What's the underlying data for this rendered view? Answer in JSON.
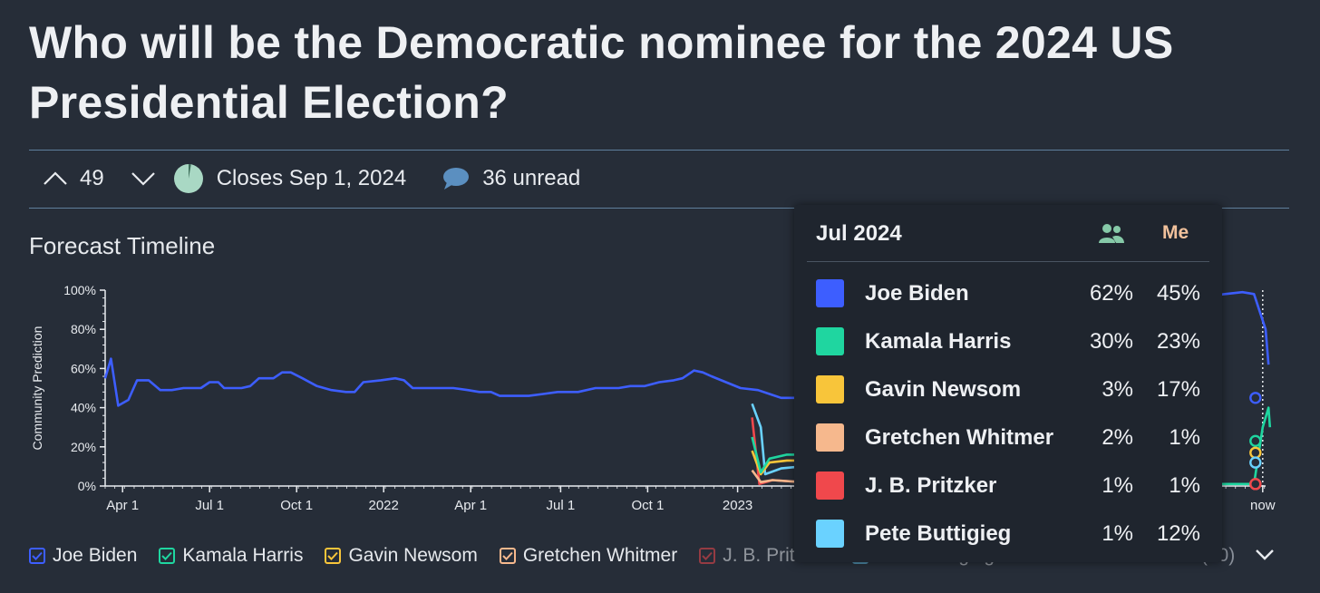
{
  "title": "Who will be the Democratic nominee for the 2024 US Presidential Election?",
  "meta": {
    "votes": "49",
    "closes": "Closes Sep 1, 2024",
    "unread": "36 unread"
  },
  "section_title": "Forecast Timeline",
  "legend_items": [
    {
      "label": "Joe Biden",
      "color": "#3d5eff"
    },
    {
      "label": "Kamala Harris",
      "color": "#1fd6a0"
    },
    {
      "label": "Gavin Newsom",
      "color": "#f8c53a"
    },
    {
      "label": "Gretchen Whitmer",
      "color": "#f6b88d"
    },
    {
      "label": "J. B. Pritzker",
      "color": "#f0484c"
    },
    {
      "label": "Pete Buttigieg",
      "color": "#6ad2ff"
    }
  ],
  "legend_others": "Others (10)",
  "tooltip": {
    "month": "Jul 2024",
    "me_label": "Me",
    "rows": [
      {
        "name": "Joe Biden",
        "community": "62%",
        "me": "45%",
        "color": "#3d5eff"
      },
      {
        "name": "Kamala Harris",
        "community": "30%",
        "me": "23%",
        "color": "#1fd6a0"
      },
      {
        "name": "Gavin Newsom",
        "community": "3%",
        "me": "17%",
        "color": "#f8c53a"
      },
      {
        "name": "Gretchen Whitmer",
        "community": "2%",
        "me": "1%",
        "color": "#f6b88d"
      },
      {
        "name": "J. B. Pritzker",
        "community": "1%",
        "me": "1%",
        "color": "#f0484c"
      },
      {
        "name": "Pete Buttigieg",
        "community": "1%",
        "me": "12%",
        "color": "#6ad2ff"
      }
    ]
  },
  "chart_data": {
    "type": "line",
    "ylabel": "Community Prediction",
    "yticks": [
      "0%",
      "20%",
      "40%",
      "60%",
      "80%",
      "100%"
    ],
    "ylim": [
      0,
      100
    ],
    "xticks": [
      "Apr 1",
      "Jul 1",
      "Oct 1",
      "2022",
      "Apr 1",
      "Jul 1",
      "Oct 1",
      "2023",
      "now"
    ],
    "x_range_months": [
      0,
      40
    ],
    "series": [
      {
        "name": "Joe Biden",
        "color": "#3d5eff",
        "points": [
          [
            0,
            55
          ],
          [
            0.2,
            65
          ],
          [
            0.45,
            41
          ],
          [
            0.8,
            44
          ],
          [
            1.1,
            54
          ],
          [
            1.5,
            54
          ],
          [
            1.9,
            49
          ],
          [
            2.3,
            49
          ],
          [
            2.7,
            50
          ],
          [
            3.3,
            50
          ],
          [
            3.6,
            53
          ],
          [
            3.9,
            53
          ],
          [
            4.1,
            50
          ],
          [
            4.7,
            50
          ],
          [
            5.0,
            51
          ],
          [
            5.3,
            55
          ],
          [
            5.8,
            55
          ],
          [
            6.1,
            58
          ],
          [
            6.4,
            58
          ],
          [
            6.8,
            55
          ],
          [
            7.3,
            51
          ],
          [
            7.8,
            49
          ],
          [
            8.3,
            48
          ],
          [
            8.6,
            48
          ],
          [
            8.9,
            53
          ],
          [
            9.5,
            54
          ],
          [
            10.0,
            55
          ],
          [
            10.3,
            54
          ],
          [
            10.6,
            50
          ],
          [
            11.5,
            50
          ],
          [
            12.0,
            50
          ],
          [
            12.5,
            49
          ],
          [
            12.9,
            48
          ],
          [
            13.3,
            48
          ],
          [
            13.6,
            46
          ],
          [
            14.2,
            46
          ],
          [
            14.6,
            46
          ],
          [
            15.1,
            47
          ],
          [
            15.6,
            48
          ],
          [
            16.3,
            48
          ],
          [
            16.9,
            50
          ],
          [
            17.7,
            50
          ],
          [
            18.1,
            51
          ],
          [
            18.6,
            51
          ],
          [
            19.1,
            53
          ],
          [
            19.6,
            54
          ],
          [
            19.9,
            55
          ],
          [
            20.3,
            59
          ],
          [
            20.6,
            58
          ],
          [
            20.9,
            56
          ],
          [
            21.4,
            53
          ],
          [
            21.9,
            50
          ],
          [
            22.5,
            49
          ],
          [
            22.9,
            47
          ],
          [
            23.3,
            45
          ],
          [
            24.0,
            45
          ],
          [
            24.5,
            47
          ],
          [
            25.1,
            47
          ],
          [
            25.6,
            49
          ],
          [
            26.2,
            54
          ],
          [
            26.7,
            54
          ],
          [
            27.3,
            55
          ],
          [
            28.0,
            55
          ],
          [
            28.5,
            56
          ],
          [
            29.3,
            56
          ],
          [
            29.9,
            56
          ],
          [
            30.3,
            57
          ],
          [
            30.7,
            59
          ],
          [
            31.3,
            59
          ],
          [
            31.8,
            61
          ],
          [
            32.4,
            60
          ],
          [
            32.9,
            61
          ],
          [
            33.4,
            62
          ],
          [
            34.0,
            63
          ],
          [
            34.3,
            66
          ]
        ]
      },
      {
        "name": "Kamala Harris",
        "color": "#1fd6a0",
        "points": [
          [
            22.3,
            25
          ],
          [
            22.6,
            7
          ],
          [
            22.9,
            14
          ],
          [
            23.5,
            16
          ],
          [
            24.0,
            16
          ],
          [
            24.3,
            20
          ],
          [
            24.8,
            16
          ],
          [
            25.5,
            16
          ],
          [
            26.5,
            15
          ],
          [
            27.5,
            14
          ],
          [
            28.5,
            14
          ],
          [
            29.5,
            13
          ],
          [
            30.5,
            13
          ],
          [
            31.5,
            13
          ],
          [
            32.2,
            15
          ],
          [
            32.8,
            13
          ],
          [
            33.5,
            12
          ],
          [
            34.3,
            13
          ]
        ]
      },
      {
        "name": "Gavin Newsom",
        "color": "#f8c53a",
        "points": [
          [
            22.3,
            18
          ],
          [
            22.6,
            6
          ],
          [
            22.9,
            12
          ],
          [
            23.5,
            13
          ],
          [
            24.3,
            13
          ],
          [
            25.0,
            12
          ],
          [
            26.0,
            11
          ],
          [
            27.0,
            10
          ],
          [
            28.0,
            10
          ],
          [
            29.0,
            10
          ],
          [
            30.0,
            10
          ],
          [
            31.0,
            10
          ],
          [
            32.0,
            11
          ],
          [
            33.0,
            10
          ],
          [
            34.3,
            11
          ]
        ]
      },
      {
        "name": "Gretchen Whitmer",
        "color": "#f6b88d",
        "points": [
          [
            22.3,
            8
          ],
          [
            22.6,
            2
          ],
          [
            23.0,
            3
          ],
          [
            24.0,
            2
          ],
          [
            25.5,
            2
          ],
          [
            27.0,
            2
          ],
          [
            28.5,
            2
          ],
          [
            29.5,
            2
          ],
          [
            29.9,
            27
          ],
          [
            30.1,
            6
          ],
          [
            30.5,
            2
          ],
          [
            31.0,
            4
          ],
          [
            31.5,
            3
          ],
          [
            32.5,
            2
          ],
          [
            33.5,
            2
          ],
          [
            34.3,
            2
          ]
        ]
      },
      {
        "name": "J. B. Pritzker",
        "color": "#f0484c",
        "points": [
          [
            22.3,
            35
          ],
          [
            22.55,
            1
          ],
          [
            23.0,
            3
          ],
          [
            24.0,
            2
          ],
          [
            25.5,
            1
          ],
          [
            27.0,
            1
          ],
          [
            28.5,
            1
          ],
          [
            30.0,
            1
          ],
          [
            31.5,
            1
          ],
          [
            33.0,
            1
          ],
          [
            34.3,
            1
          ]
        ]
      },
      {
        "name": "Pete Buttigieg",
        "color": "#6ad2ff",
        "points": [
          [
            22.3,
            42
          ],
          [
            22.6,
            30
          ],
          [
            22.75,
            6
          ],
          [
            23.3,
            9
          ],
          [
            24.0,
            10
          ],
          [
            25.0,
            9
          ],
          [
            26.0,
            9
          ],
          [
            27.5,
            9
          ],
          [
            28.5,
            9
          ],
          [
            29.5,
            8
          ],
          [
            30.5,
            7
          ],
          [
            31.5,
            6
          ],
          [
            32.5,
            5
          ],
          [
            33.5,
            5
          ],
          [
            34.3,
            5
          ]
        ]
      }
    ],
    "end_segment": [
      {
        "name": "Joe Biden",
        "color": "#3d5eff",
        "points": [
          [
            38.0,
            97
          ],
          [
            38.6,
            98
          ],
          [
            39.2,
            99
          ],
          [
            39.6,
            98
          ],
          [
            40,
            80
          ],
          [
            40.1,
            62
          ]
        ]
      },
      {
        "name": "Kamala Harris",
        "color": "#1fd6a0",
        "points": [
          [
            38.0,
            1
          ],
          [
            39.6,
            1
          ],
          [
            39.9,
            30
          ],
          [
            40.1,
            40
          ],
          [
            40.15,
            30
          ]
        ]
      }
    ],
    "my_predictions": [
      {
        "name": "Joe Biden",
        "value": 45,
        "color": "#3d5eff"
      },
      {
        "name": "Kamala Harris",
        "value": 23,
        "color": "#1fd6a0"
      },
      {
        "name": "Gavin Newsom",
        "value": 17,
        "color": "#f8c53a"
      },
      {
        "name": "Pete Buttigieg",
        "value": 12,
        "color": "#6ad2ff"
      },
      {
        "name": "Gretchen Whitmer",
        "value": 1,
        "color": "#f6b88d"
      },
      {
        "name": "J. B. Pritzker",
        "value": 1,
        "color": "#f0484c"
      }
    ]
  }
}
